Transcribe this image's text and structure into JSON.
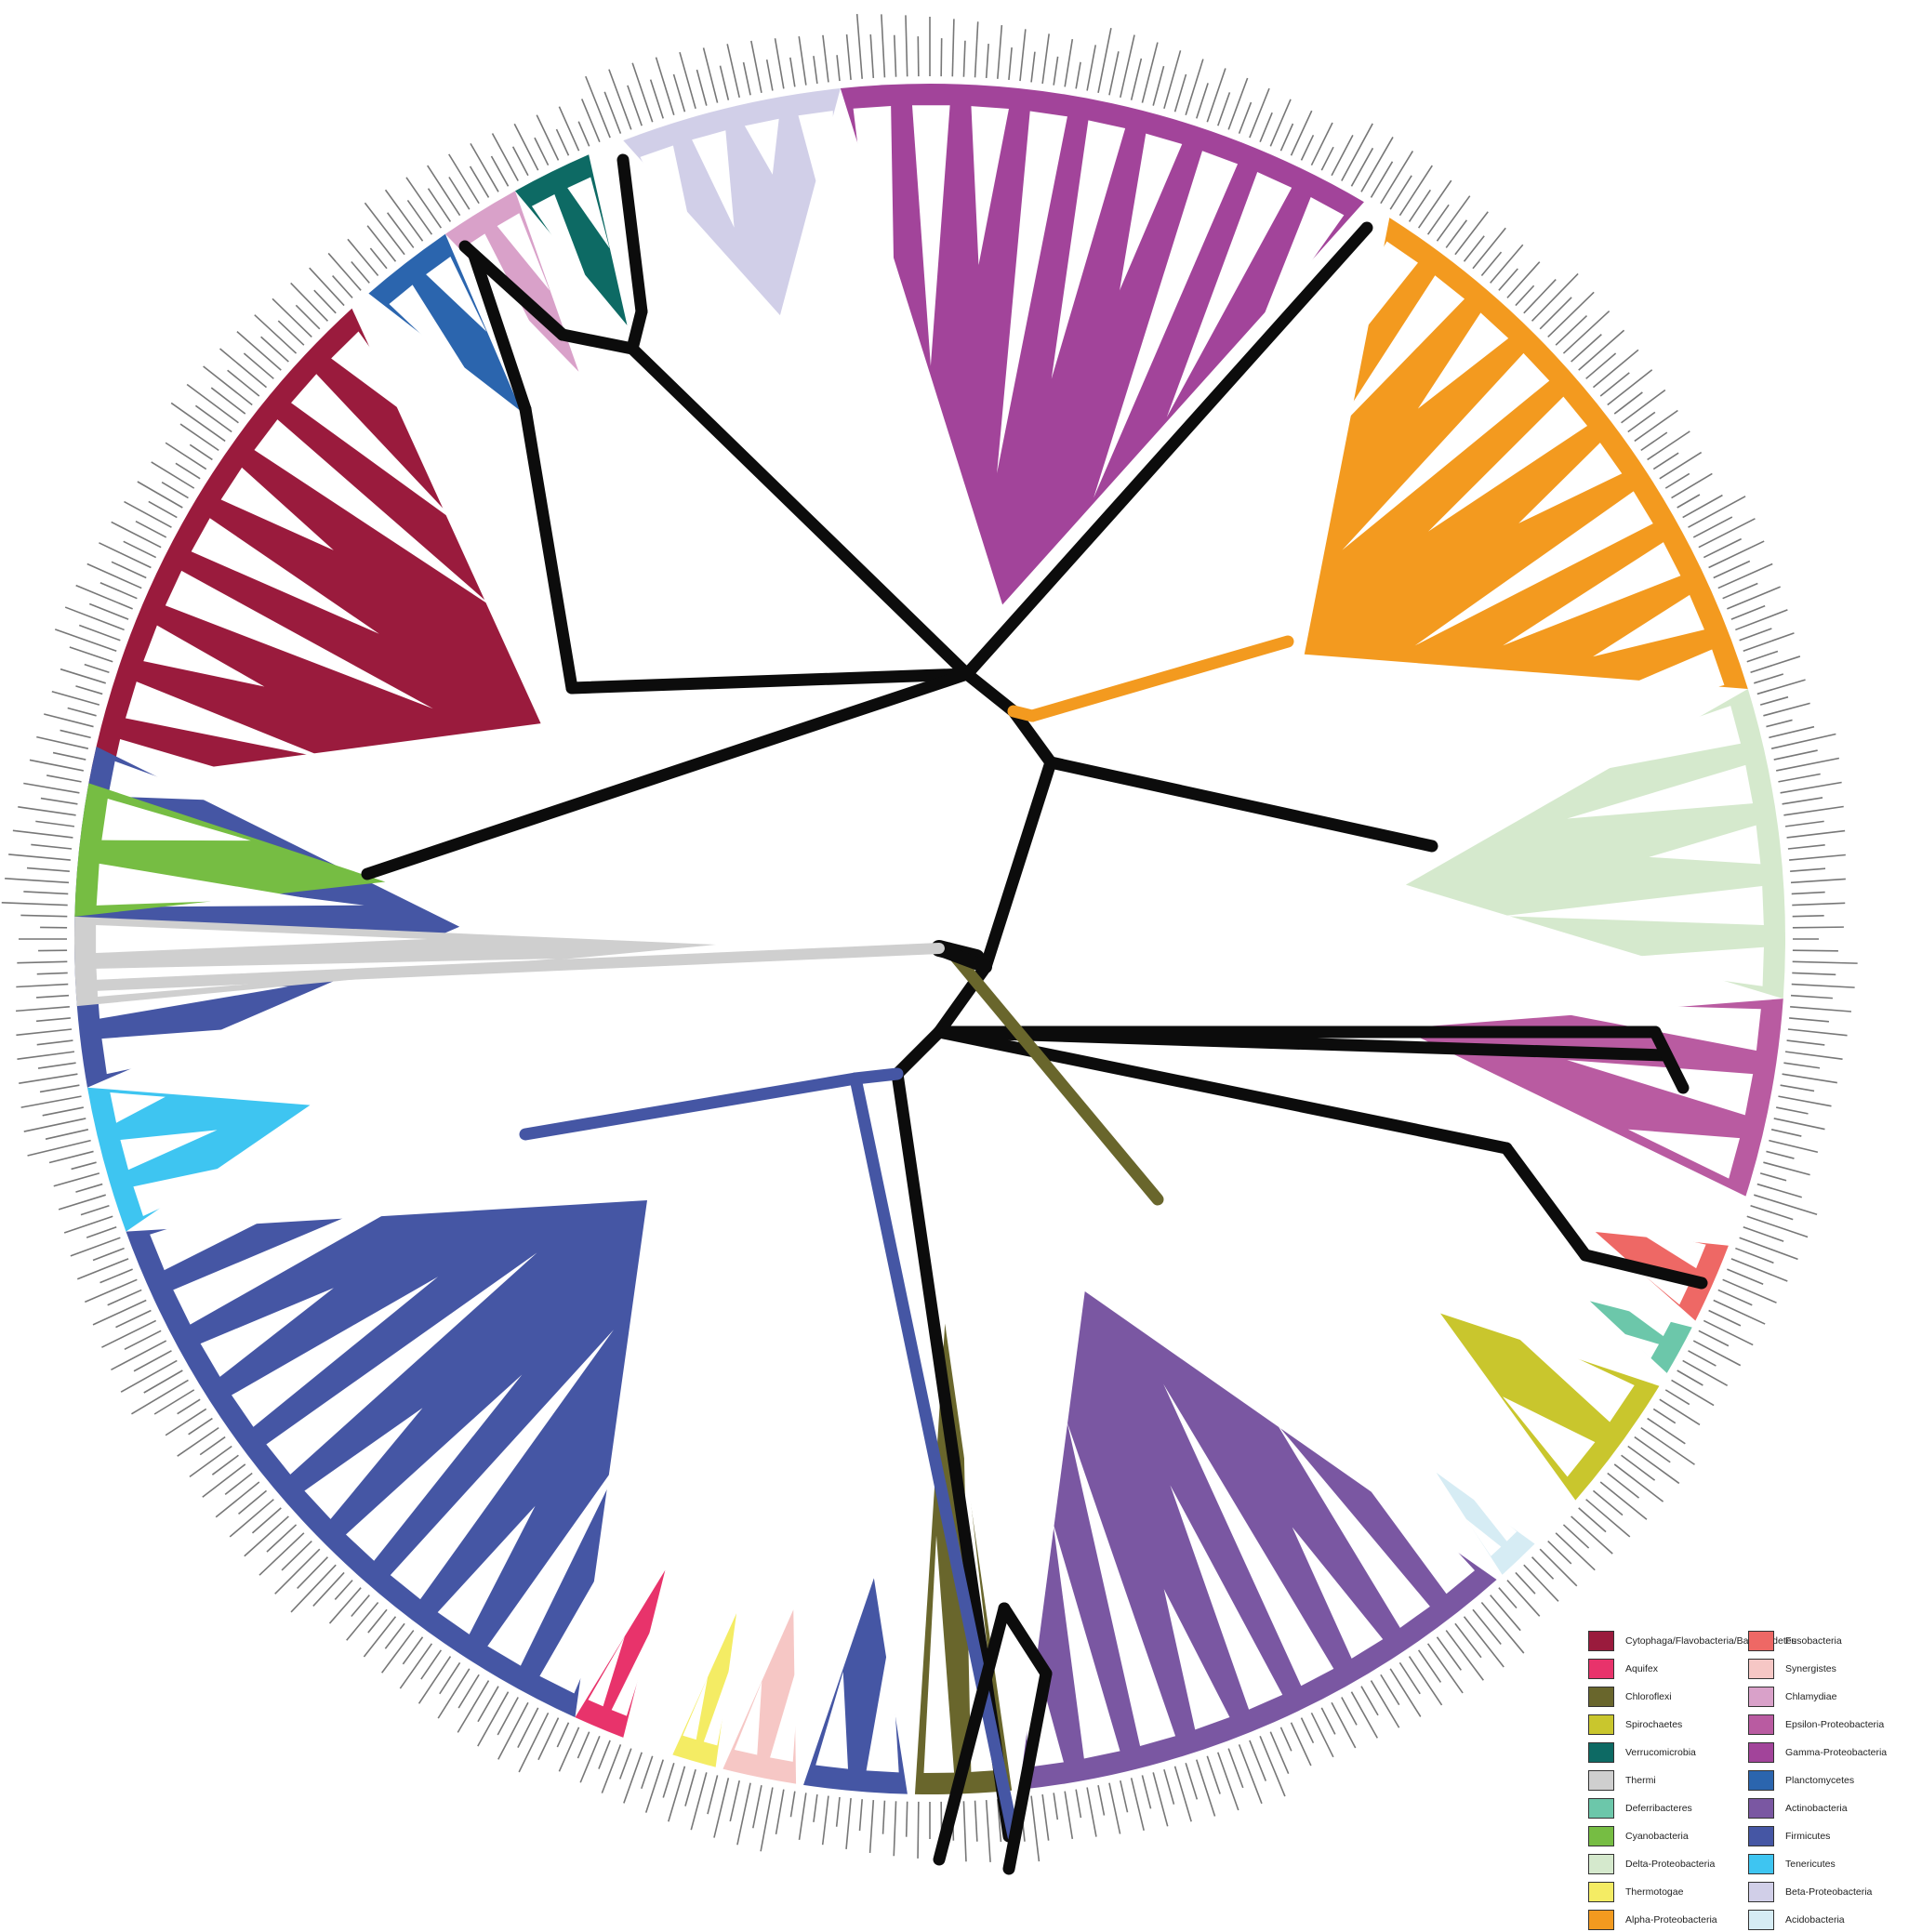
{
  "diagram": {
    "type": "circular-phylogenetic-tree",
    "center_branch_color": "#0c0c0c",
    "leaf_label_color": "#777777"
  },
  "clades": [
    {
      "name": "Cytophaga/Flavobacteria/Bacteroidetes",
      "color": "#9a1b3d"
    },
    {
      "name": "Aquifex",
      "color": "#e8336b"
    },
    {
      "name": "Chloroflexi",
      "color": "#69662c"
    },
    {
      "name": "Spirochaetes",
      "color": "#c9c62d"
    },
    {
      "name": "Verrucomicrobia",
      "color": "#0d6a64"
    },
    {
      "name": "Thermi",
      "color": "#cfcfcf"
    },
    {
      "name": "Deferribacteres",
      "color": "#6cc7aa"
    },
    {
      "name": "Cyanobacteria",
      "color": "#76bd43"
    },
    {
      "name": "Delta-Proteobacteria",
      "color": "#d5e9cd"
    },
    {
      "name": "Thermotogae",
      "color": "#f4ec64"
    },
    {
      "name": "Alpha-Proteobacteria",
      "color": "#f39a1f"
    },
    {
      "name": "Fusobacteria",
      "color": "#ee6865"
    },
    {
      "name": "Synergistes",
      "color": "#f6c7c5"
    },
    {
      "name": "Chlamydiae",
      "color": "#d9a1c9"
    },
    {
      "name": "Epsilon-Proteobacteria",
      "color": "#b95ba1"
    },
    {
      "name": "Gamma-Proteobacteria",
      "color": "#a2449a"
    },
    {
      "name": "Planctomycetes",
      "color": "#2b65ae"
    },
    {
      "name": "Actinobacteria",
      "color": "#7a57a2"
    },
    {
      "name": "Firmicutes",
      "color": "#4556a4"
    },
    {
      "name": "Tenericutes",
      "color": "#3ec5f1"
    },
    {
      "name": "Beta-Proteobacteria",
      "color": "#d1cfe8"
    },
    {
      "name": "Acidobacteria",
      "color": "#d6ecf4"
    }
  ],
  "legend": {
    "columns": [
      [
        "Cytophaga/Flavobacteria/Bacteroidetes",
        "Aquifex",
        "Chloroflexi",
        "Spirochaetes",
        "Verrucomicrobia",
        "Thermi",
        "Deferribacteres",
        "Cyanobacteria",
        "Delta-Proteobacteria",
        "Thermotogae",
        "Alpha-Proteobacteria"
      ],
      [
        "Fusobacteria",
        "Synergistes",
        "Chlamydiae",
        "Epsilon-Proteobacteria",
        "Gamma-Proteobacteria",
        "Planctomycetes",
        "Actinobacteria",
        "Firmicutes",
        "Tenericutes",
        "Beta-Proteobacteria",
        "Acidobacteria"
      ]
    ]
  }
}
